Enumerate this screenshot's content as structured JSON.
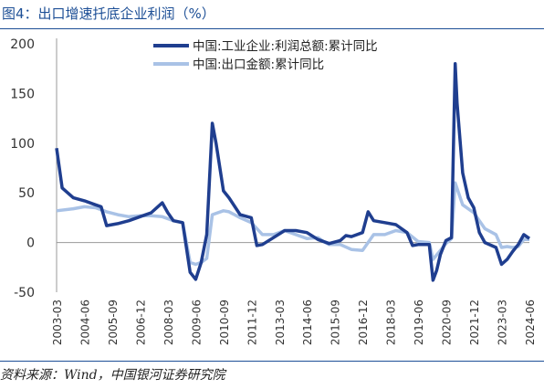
{
  "figure": {
    "title": "图4：出口增速托底企业利润（%）",
    "source": "资料来源：Wind，中国银河证券研究院"
  },
  "chart_data": {
    "type": "line",
    "xlabel": "",
    "ylabel": "",
    "ylim": [
      -50,
      200
    ],
    "yticks": [
      -50,
      0,
      50,
      100,
      150,
      200
    ],
    "xtick_labels": [
      "2003-03",
      "2004-06",
      "2005-09",
      "2006-12",
      "2008-03",
      "2009-06",
      "2010-09",
      "2011-12",
      "2013-03",
      "2014-06",
      "2015-09",
      "2016-12",
      "2018-03",
      "2019-06",
      "2020-09",
      "2021-12",
      "2023-03",
      "2024-06"
    ],
    "grid": false,
    "legend_position": "top-center",
    "series": [
      {
        "name": "中国:工业企业:利润总额:累计同比",
        "color": "#1f3e8f",
        "x": [
          "2003-03",
          "2003-06",
          "2003-12",
          "2004-06",
          "2004-12",
          "2005-03",
          "2005-06",
          "2005-12",
          "2006-06",
          "2006-12",
          "2007-06",
          "2007-12",
          "2008-03",
          "2008-06",
          "2008-11",
          "2009-03",
          "2009-06",
          "2009-09",
          "2009-12",
          "2010-03",
          "2010-05",
          "2010-09",
          "2010-12",
          "2011-06",
          "2011-12",
          "2012-03",
          "2012-06",
          "2012-12",
          "2013-06",
          "2013-12",
          "2014-06",
          "2014-12",
          "2015-06",
          "2015-12",
          "2016-03",
          "2016-06",
          "2016-12",
          "2017-03",
          "2017-06",
          "2017-12",
          "2018-06",
          "2018-12",
          "2019-03",
          "2019-06",
          "2019-12",
          "2020-02",
          "2020-04",
          "2020-06",
          "2020-09",
          "2020-12",
          "2021-02",
          "2021-03",
          "2021-06",
          "2021-09",
          "2021-12",
          "2022-03",
          "2022-06",
          "2022-12",
          "2023-03",
          "2023-06",
          "2023-09",
          "2023-12",
          "2024-03",
          "2024-06"
        ],
        "y": [
          95,
          55,
          45,
          42,
          38,
          36,
          17,
          19,
          22,
          26,
          30,
          40,
          30,
          22,
          20,
          -30,
          -37,
          -20,
          8,
          120,
          100,
          52,
          45,
          28,
          25,
          -3,
          -2,
          5,
          12,
          12,
          10,
          3,
          -1,
          2,
          7,
          6,
          10,
          31,
          22,
          20,
          18,
          10,
          -3,
          -2,
          -2,
          -38,
          -28,
          -12,
          2,
          5,
          180,
          140,
          70,
          45,
          35,
          10,
          0,
          -5,
          -22,
          -17,
          -9,
          -2,
          8,
          4
        ]
      },
      {
        "name": "中国:出口金额:累计同比",
        "color": "#a9c2e6",
        "x": [
          "2003-03",
          "2003-12",
          "2004-06",
          "2004-12",
          "2005-06",
          "2005-12",
          "2006-06",
          "2006-12",
          "2007-06",
          "2007-12",
          "2008-06",
          "2008-11",
          "2009-03",
          "2009-06",
          "2009-09",
          "2009-12",
          "2010-03",
          "2010-09",
          "2010-12",
          "2011-06",
          "2011-12",
          "2012-06",
          "2012-12",
          "2013-06",
          "2013-12",
          "2014-06",
          "2014-12",
          "2015-03",
          "2015-06",
          "2015-12",
          "2016-06",
          "2016-12",
          "2017-06",
          "2017-12",
          "2018-06",
          "2018-12",
          "2019-06",
          "2019-12",
          "2020-02",
          "2020-06",
          "2020-09",
          "2020-12",
          "2021-02",
          "2021-06",
          "2021-12",
          "2022-06",
          "2022-12",
          "2023-03",
          "2023-06",
          "2023-09",
          "2023-12",
          "2024-03",
          "2024-06"
        ],
        "y": [
          32,
          34,
          36,
          35,
          31,
          28,
          26,
          27,
          27,
          26,
          22,
          20,
          -20,
          -22,
          -20,
          -16,
          28,
          32,
          31,
          25,
          20,
          8,
          8,
          12,
          8,
          4,
          5,
          1,
          -2,
          -2,
          -7,
          -8,
          8,
          8,
          12,
          10,
          1,
          0,
          -17,
          -8,
          -1,
          4,
          60,
          38,
          30,
          14,
          8,
          -5,
          -4,
          -5,
          -4,
          3,
          3
        ]
      }
    ]
  }
}
